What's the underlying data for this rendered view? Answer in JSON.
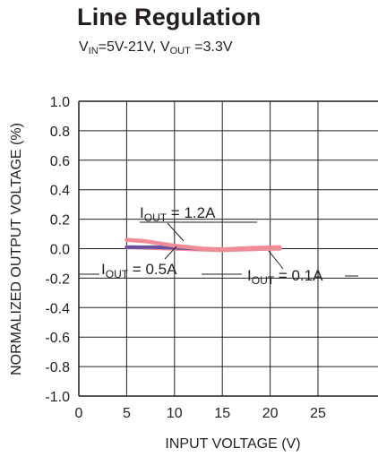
{
  "chart_data": {
    "type": "line",
    "title": "Line Regulation",
    "subtitle": {
      "vin_symbol": "V",
      "vin_sub": "IN",
      "vin_text": "=5V-21V, ",
      "vout_symbol": "V",
      "vout_sub": "OUT",
      "vout_text": " =3.3V"
    },
    "xlabel": "INPUT VOLTAGE (V)",
    "ylabel": "NORMALIZED OUTPUT VOLTAGE (%)",
    "xlim": [
      0,
      25
    ],
    "ylim": [
      -1.0,
      1.0
    ],
    "x_ticks": [
      "0",
      "5",
      "10",
      "15",
      "20",
      "25"
    ],
    "y_ticks": [
      "1.0",
      "0.8",
      "0.6",
      "0.4",
      "0.2",
      "0.0",
      "-0.2",
      "-0.4",
      "-0.6",
      "-0.8",
      "-1.0"
    ],
    "grid": true,
    "series": [
      {
        "name": "IOUT = 0.1A",
        "color": "#e8909a",
        "x": [
          5,
          10,
          15,
          20,
          21
        ],
        "y": [
          0.01,
          0.0,
          -0.01,
          0.0,
          0.0
        ]
      },
      {
        "name": "IOUT = 0.5A",
        "color": "#6a4fa0",
        "x": [
          5,
          8,
          11,
          13
        ],
        "y": [
          0.01,
          0.01,
          0.005,
          0.0
        ]
      },
      {
        "name": "IOUT = 1.2A",
        "color": "#f08c98",
        "x": [
          5,
          7,
          10,
          13,
          15,
          18,
          21
        ],
        "y": [
          0.06,
          0.05,
          0.02,
          0.0,
          -0.005,
          0.005,
          0.01
        ]
      }
    ],
    "annotations": [
      {
        "sym": "I",
        "sub": "OUT",
        "text": " = 1.2A"
      },
      {
        "sym": "I",
        "sub": "OUT",
        "text": " = 0.5A"
      },
      {
        "sym": "I",
        "sub": "OUT",
        "text": " = 0.1A"
      }
    ]
  }
}
